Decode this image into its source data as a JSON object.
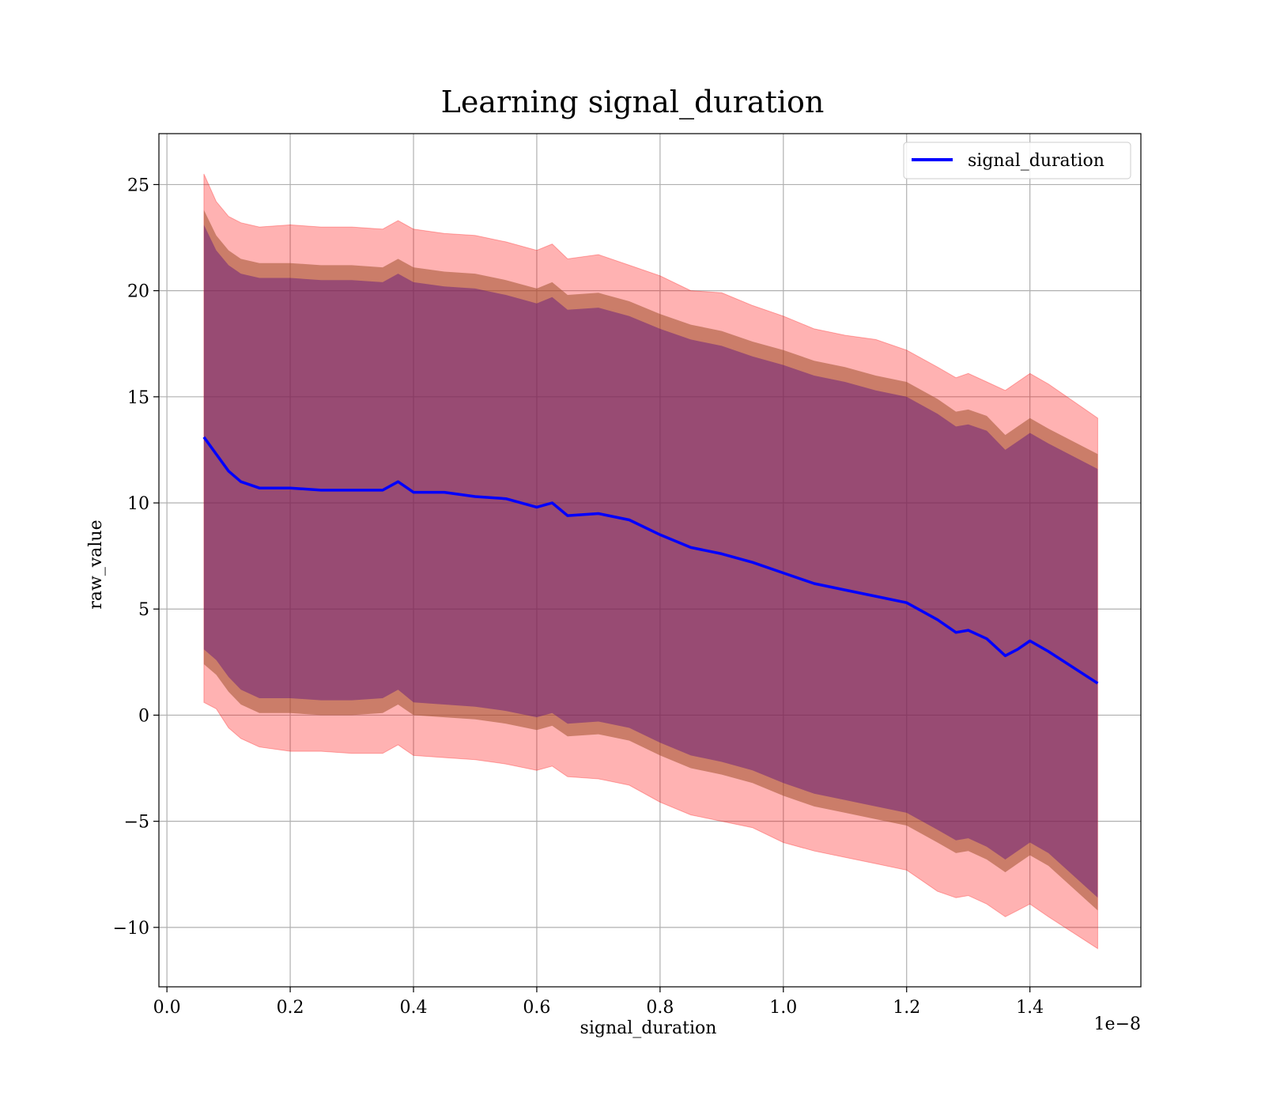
{
  "chart_data": {
    "type": "line",
    "title": "Learning signal_duration",
    "xlabel": "signal_duration",
    "ylabel": "raw_value",
    "x_scale_label": "1e−8",
    "xlim": [
      -0.013,
      1.58
    ],
    "ylim": [
      -12.8,
      27.4
    ],
    "x_ticks": [
      0.0,
      0.2,
      0.4,
      0.6,
      0.8,
      1.0,
      1.2,
      1.4
    ],
    "x_tick_labels": [
      "0.0",
      "0.2",
      "0.4",
      "0.6",
      "0.8",
      "1.0",
      "1.2",
      "1.4"
    ],
    "y_ticks": [
      -10,
      -5,
      0,
      5,
      10,
      15,
      20,
      25
    ],
    "y_tick_labels": [
      "−10",
      "−5",
      "0",
      "5",
      "10",
      "15",
      "20",
      "25"
    ],
    "grid": true,
    "legend_position": "top-right",
    "colors": {
      "line": "#0000ff",
      "band_outer": "#ff0000",
      "band_middle": "#a0522d",
      "band_inner": "#4b0082"
    },
    "series": [
      {
        "name": "signal_duration",
        "x": [
          0.06,
          0.08,
          0.1,
          0.12,
          0.15,
          0.2,
          0.25,
          0.3,
          0.35,
          0.375,
          0.4,
          0.45,
          0.5,
          0.55,
          0.6,
          0.625,
          0.65,
          0.7,
          0.75,
          0.8,
          0.85,
          0.9,
          0.95,
          1.0,
          1.05,
          1.1,
          1.15,
          1.2,
          1.25,
          1.28,
          1.3,
          1.33,
          1.36,
          1.38,
          1.4,
          1.43,
          1.51
        ],
        "y": [
          13.1,
          12.3,
          11.5,
          11.0,
          10.7,
          10.7,
          10.6,
          10.6,
          10.6,
          11.0,
          10.5,
          10.5,
          10.3,
          10.2,
          9.8,
          10.0,
          9.4,
          9.5,
          9.2,
          8.5,
          7.9,
          7.6,
          7.2,
          6.7,
          6.2,
          5.9,
          5.6,
          5.3,
          4.5,
          3.9,
          4.0,
          3.6,
          2.8,
          3.1,
          3.5,
          3.0,
          1.5
        ],
        "upper_outer": [
          25.5,
          24.2,
          23.5,
          23.2,
          23.0,
          23.1,
          23.0,
          23.0,
          22.9,
          23.3,
          22.9,
          22.7,
          22.6,
          22.3,
          21.9,
          22.2,
          21.5,
          21.7,
          21.2,
          20.7,
          20.0,
          19.9,
          19.3,
          18.8,
          18.2,
          17.9,
          17.7,
          17.2,
          16.4,
          15.9,
          16.1,
          15.7,
          15.3,
          15.7,
          16.1,
          15.6,
          14.0
        ],
        "lower_outer": [
          0.6,
          0.3,
          -0.6,
          -1.1,
          -1.5,
          -1.7,
          -1.7,
          -1.8,
          -1.8,
          -1.4,
          -1.9,
          -2.0,
          -2.1,
          -2.3,
          -2.6,
          -2.4,
          -2.9,
          -3.0,
          -3.3,
          -4.1,
          -4.7,
          -5.0,
          -5.3,
          -6.0,
          -6.4,
          -6.7,
          -7.0,
          -7.3,
          -8.3,
          -8.6,
          -8.5,
          -8.9,
          -9.5,
          -9.2,
          -8.9,
          -9.5,
          -11.0
        ],
        "upper_middle": [
          23.8,
          22.6,
          21.9,
          21.5,
          21.3,
          21.3,
          21.2,
          21.2,
          21.1,
          21.5,
          21.1,
          20.9,
          20.8,
          20.5,
          20.1,
          20.4,
          19.8,
          19.9,
          19.5,
          18.9,
          18.4,
          18.1,
          17.6,
          17.2,
          16.7,
          16.4,
          16.0,
          15.7,
          14.9,
          14.3,
          14.4,
          14.1,
          13.2,
          13.6,
          14.0,
          13.5,
          12.3
        ],
        "lower_middle": [
          2.4,
          1.9,
          1.1,
          0.5,
          0.1,
          0.1,
          0.0,
          0.0,
          0.1,
          0.5,
          0.0,
          -0.1,
          -0.2,
          -0.4,
          -0.7,
          -0.5,
          -1.0,
          -0.9,
          -1.2,
          -1.9,
          -2.5,
          -2.8,
          -3.2,
          -3.8,
          -4.3,
          -4.6,
          -4.9,
          -5.2,
          -6.0,
          -6.5,
          -6.4,
          -6.8,
          -7.4,
          -7.0,
          -6.6,
          -7.1,
          -9.2
        ],
        "upper_inner": [
          23.1,
          21.9,
          21.2,
          20.8,
          20.6,
          20.6,
          20.5,
          20.5,
          20.4,
          20.8,
          20.4,
          20.2,
          20.1,
          19.8,
          19.4,
          19.7,
          19.1,
          19.2,
          18.8,
          18.2,
          17.7,
          17.4,
          16.9,
          16.5,
          16.0,
          15.7,
          15.3,
          15.0,
          14.2,
          13.6,
          13.7,
          13.4,
          12.5,
          12.9,
          13.3,
          12.8,
          11.6
        ],
        "lower_inner": [
          3.1,
          2.6,
          1.8,
          1.2,
          0.8,
          0.8,
          0.7,
          0.7,
          0.8,
          1.2,
          0.6,
          0.5,
          0.4,
          0.2,
          -0.1,
          0.1,
          -0.4,
          -0.3,
          -0.6,
          -1.3,
          -1.9,
          -2.2,
          -2.6,
          -3.2,
          -3.7,
          -4.0,
          -4.3,
          -4.6,
          -5.4,
          -5.9,
          -5.8,
          -6.2,
          -6.8,
          -6.4,
          -6.0,
          -6.5,
          -8.6
        ]
      }
    ]
  }
}
